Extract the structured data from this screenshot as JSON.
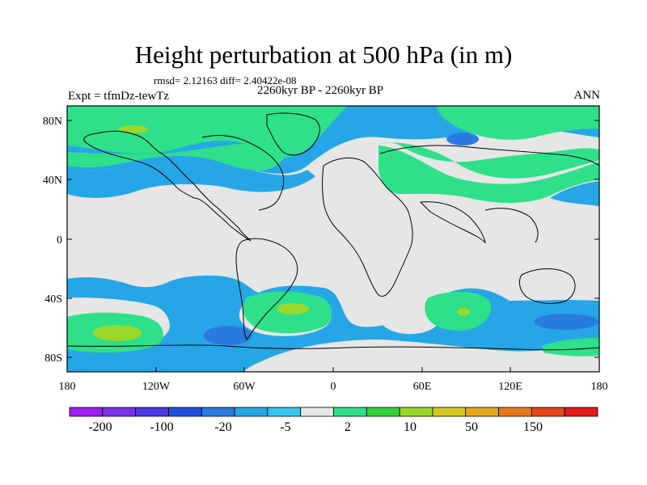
{
  "header": {
    "title": "Height perturbation at 500 hPa (in m)",
    "stats": "rmsd= 2.12163 diff= 2.40422e-08",
    "experiment": "Expt = tfmDz-tewTz",
    "period": "2260kyr BP - 2260kyr BP",
    "season": "ANN"
  },
  "axes": {
    "lat_labels": [
      "80N",
      "40N",
      "0",
      "40S",
      "80S"
    ],
    "lon_labels": [
      "180",
      "120W",
      "60W",
      "0",
      "60E",
      "120E",
      "180"
    ]
  },
  "colorbar": {
    "labels": [
      "-200",
      "-100",
      "-20",
      "-5",
      "2",
      "10",
      "50",
      "150"
    ],
    "colors": [
      "#a020f0",
      "#7a30e8",
      "#4a3ae0",
      "#2450e0",
      "#2a7be0",
      "#26a6e6",
      "#34c6ee",
      "#e6e6e6",
      "#2ee08a",
      "#34d23c",
      "#9ad82a",
      "#d2c81e",
      "#e6a81a",
      "#e6781a",
      "#e6461a",
      "#e61a1a"
    ]
  },
  "map": {
    "projection": "cylindrical-equidistant",
    "background_color": "#e6e6e6",
    "fills": [
      {
        "level": "-5",
        "color": "#26a6e6"
      },
      {
        "level": "2",
        "color": "#2ee08a"
      },
      {
        "level": "10",
        "color": "#9ad82a"
      }
    ]
  }
}
